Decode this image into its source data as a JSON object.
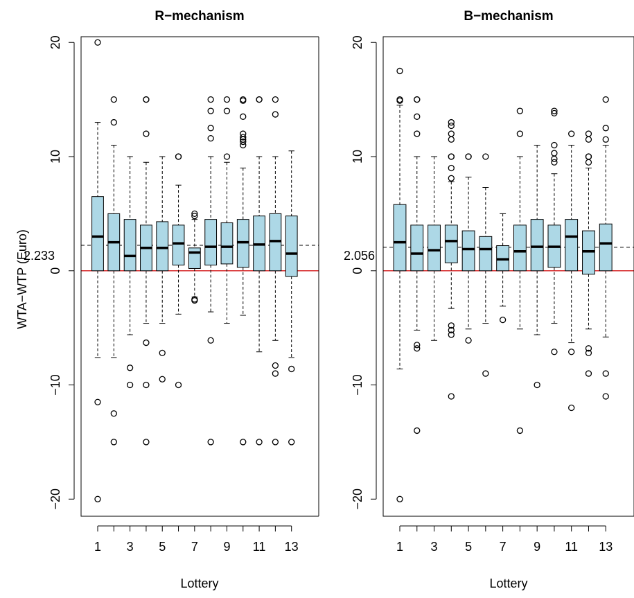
{
  "chart_data": [
    {
      "type": "box",
      "title": "R−mechanism",
      "xlabel": "Lottery",
      "ylabel": "WTA−WTP (Euro)",
      "ylim": [
        -21.5,
        20.5
      ],
      "yticks": [
        "20",
        "10",
        "0",
        "−10",
        "−20"
      ],
      "yticks_values": [
        20,
        10,
        0,
        -10,
        -20
      ],
      "xticks": [
        "1",
        "3",
        "5",
        "7",
        "9",
        "11",
        "13"
      ],
      "xticks_values": [
        1,
        3,
        5,
        7,
        9,
        11,
        13
      ],
      "mean_line": 2.233,
      "mean_label": "2.233",
      "zero_line_color": "#d62728",
      "box_color": "#add8e6",
      "boxes": [
        {
          "x": 1,
          "lower_whisker": -7.6,
          "q1": 0,
          "median": 3.0,
          "q3": 6.5,
          "upper_whisker": 13.0,
          "outliers": [
            20,
            -11.5,
            -20
          ]
        },
        {
          "x": 2,
          "lower_whisker": -7.6,
          "q1": 0,
          "median": 2.5,
          "q3": 5.0,
          "upper_whisker": 11.0,
          "outliers": [
            15,
            13,
            -12.5,
            -15
          ]
        },
        {
          "x": 3,
          "lower_whisker": -5.6,
          "q1": 0,
          "median": 1.3,
          "q3": 4.5,
          "upper_whisker": 10.0,
          "outliers": [
            -8.5,
            -10
          ]
        },
        {
          "x": 4,
          "lower_whisker": -4.6,
          "q1": 0,
          "median": 2.0,
          "q3": 4.0,
          "upper_whisker": 9.5,
          "outliers": [
            15,
            15,
            12,
            -6.3,
            -10,
            -15
          ]
        },
        {
          "x": 5,
          "lower_whisker": -4.6,
          "q1": 0,
          "median": 2.0,
          "q3": 4.3,
          "upper_whisker": 10.0,
          "outliers": [
            -7.2,
            -9.5
          ]
        },
        {
          "x": 6,
          "lower_whisker": -3.8,
          "q1": 0.5,
          "median": 2.4,
          "q3": 4.0,
          "upper_whisker": 7.5,
          "outliers": [
            10,
            10,
            -10
          ]
        },
        {
          "x": 7,
          "lower_whisker": -2.3,
          "q1": 0.2,
          "median": 1.6,
          "q3": 2.0,
          "upper_whisker": 4.5,
          "outliers": [
            5,
            4.8,
            -2.5,
            -2.6
          ]
        },
        {
          "x": 8,
          "lower_whisker": -3.6,
          "q1": 0.5,
          "median": 2.1,
          "q3": 4.5,
          "upper_whisker": 10.0,
          "outliers": [
            15,
            14,
            12.5,
            11.6,
            -6.1,
            -15
          ]
        },
        {
          "x": 9,
          "lower_whisker": -4.6,
          "q1": 0.6,
          "median": 2.1,
          "q3": 4.2,
          "upper_whisker": 9.5,
          "outliers": [
            15,
            14,
            10
          ]
        },
        {
          "x": 10,
          "lower_whisker": -3.9,
          "q1": 0.3,
          "median": 2.5,
          "q3": 4.5,
          "upper_whisker": 9.0,
          "outliers": [
            15,
            14.9,
            13.5,
            12,
            11.7,
            11.5,
            11.3,
            11,
            -15
          ]
        },
        {
          "x": 11,
          "lower_whisker": -7.1,
          "q1": 0,
          "median": 2.3,
          "q3": 4.8,
          "upper_whisker": 10.0,
          "outliers": [
            15,
            15,
            -15
          ]
        },
        {
          "x": 12,
          "lower_whisker": -6.1,
          "q1": 0,
          "median": 2.6,
          "q3": 5.0,
          "upper_whisker": 10.0,
          "outliers": [
            15,
            13.7,
            -8.3,
            -9,
            -15
          ]
        },
        {
          "x": 13,
          "lower_whisker": -7.6,
          "q1": -0.5,
          "median": 1.5,
          "q3": 4.8,
          "upper_whisker": 10.5,
          "outliers": [
            -8.6,
            -15
          ]
        }
      ]
    },
    {
      "type": "box",
      "title": "B−mechanism",
      "xlabel": "Lottery",
      "ylabel": "",
      "ylim": [
        -21.5,
        20.5
      ],
      "yticks": [
        "20",
        "10",
        "0",
        "−10",
        "−20"
      ],
      "yticks_values": [
        20,
        10,
        0,
        -10,
        -20
      ],
      "xticks": [
        "1",
        "3",
        "5",
        "7",
        "9",
        "11",
        "13"
      ],
      "xticks_values": [
        1,
        3,
        5,
        7,
        9,
        11,
        13
      ],
      "mean_line": 2.056,
      "mean_label": "2.056",
      "zero_line_color": "#d62728",
      "box_color": "#add8e6",
      "boxes": [
        {
          "x": 1,
          "lower_whisker": -8.6,
          "q1": 0,
          "median": 2.5,
          "q3": 5.8,
          "upper_whisker": 14.5,
          "outliers": [
            17.5,
            15,
            14.9,
            -20
          ]
        },
        {
          "x": 2,
          "lower_whisker": -5.2,
          "q1": 0,
          "median": 1.5,
          "q3": 4.0,
          "upper_whisker": 10.0,
          "outliers": [
            15,
            15,
            13.5,
            12,
            -6.5,
            -6.8,
            -14
          ]
        },
        {
          "x": 3,
          "lower_whisker": -6.1,
          "q1": 0,
          "median": 1.8,
          "q3": 4.0,
          "upper_whisker": 10.0,
          "outliers": []
        },
        {
          "x": 4,
          "lower_whisker": -3.3,
          "q1": 0.7,
          "median": 2.6,
          "q3": 4.0,
          "upper_whisker": 7.8,
          "outliers": [
            13,
            12.7,
            12,
            11.5,
            10,
            10,
            9,
            8.1,
            -4.8,
            -5.2,
            -5.6,
            -11
          ]
        },
        {
          "x": 5,
          "lower_whisker": -5.1,
          "q1": 0,
          "median": 1.9,
          "q3": 3.5,
          "upper_whisker": 8.2,
          "outliers": [
            10,
            10,
            -6.1
          ]
        },
        {
          "x": 6,
          "lower_whisker": -4.6,
          "q1": 0,
          "median": 1.9,
          "q3": 3.0,
          "upper_whisker": 7.3,
          "outliers": [
            10,
            -9
          ]
        },
        {
          "x": 7,
          "lower_whisker": -3.1,
          "q1": 0,
          "median": 1.0,
          "q3": 2.2,
          "upper_whisker": 5.0,
          "outliers": [
            -4.3
          ]
        },
        {
          "x": 8,
          "lower_whisker": -5.1,
          "q1": 0,
          "median": 1.7,
          "q3": 4.0,
          "upper_whisker": 10.0,
          "outliers": [
            14,
            12,
            -14
          ]
        },
        {
          "x": 9,
          "lower_whisker": -5.6,
          "q1": 0,
          "median": 2.1,
          "q3": 4.5,
          "upper_whisker": 11.0,
          "outliers": [
            -10
          ]
        },
        {
          "x": 10,
          "lower_whisker": -4.6,
          "q1": 0.3,
          "median": 2.1,
          "q3": 4.0,
          "upper_whisker": 8.5,
          "outliers": [
            14,
            13.8,
            11,
            10.3,
            9.8,
            9.5,
            -7.1
          ]
        },
        {
          "x": 11,
          "lower_whisker": -6.3,
          "q1": 0,
          "median": 3.0,
          "q3": 4.5,
          "upper_whisker": 11.0,
          "outliers": [
            12,
            -7.1,
            -12
          ]
        },
        {
          "x": 12,
          "lower_whisker": -5.1,
          "q1": -0.3,
          "median": 1.7,
          "q3": 3.5,
          "upper_whisker": 9.0,
          "outliers": [
            12,
            11.5,
            10,
            10,
            9.5,
            -6.8,
            -7.2,
            -9
          ]
        },
        {
          "x": 13,
          "lower_whisker": -5.8,
          "q1": 0,
          "median": 2.4,
          "q3": 4.1,
          "upper_whisker": 11.0,
          "outliers": [
            15,
            12.5,
            11.5,
            -9,
            -11
          ]
        }
      ]
    }
  ]
}
